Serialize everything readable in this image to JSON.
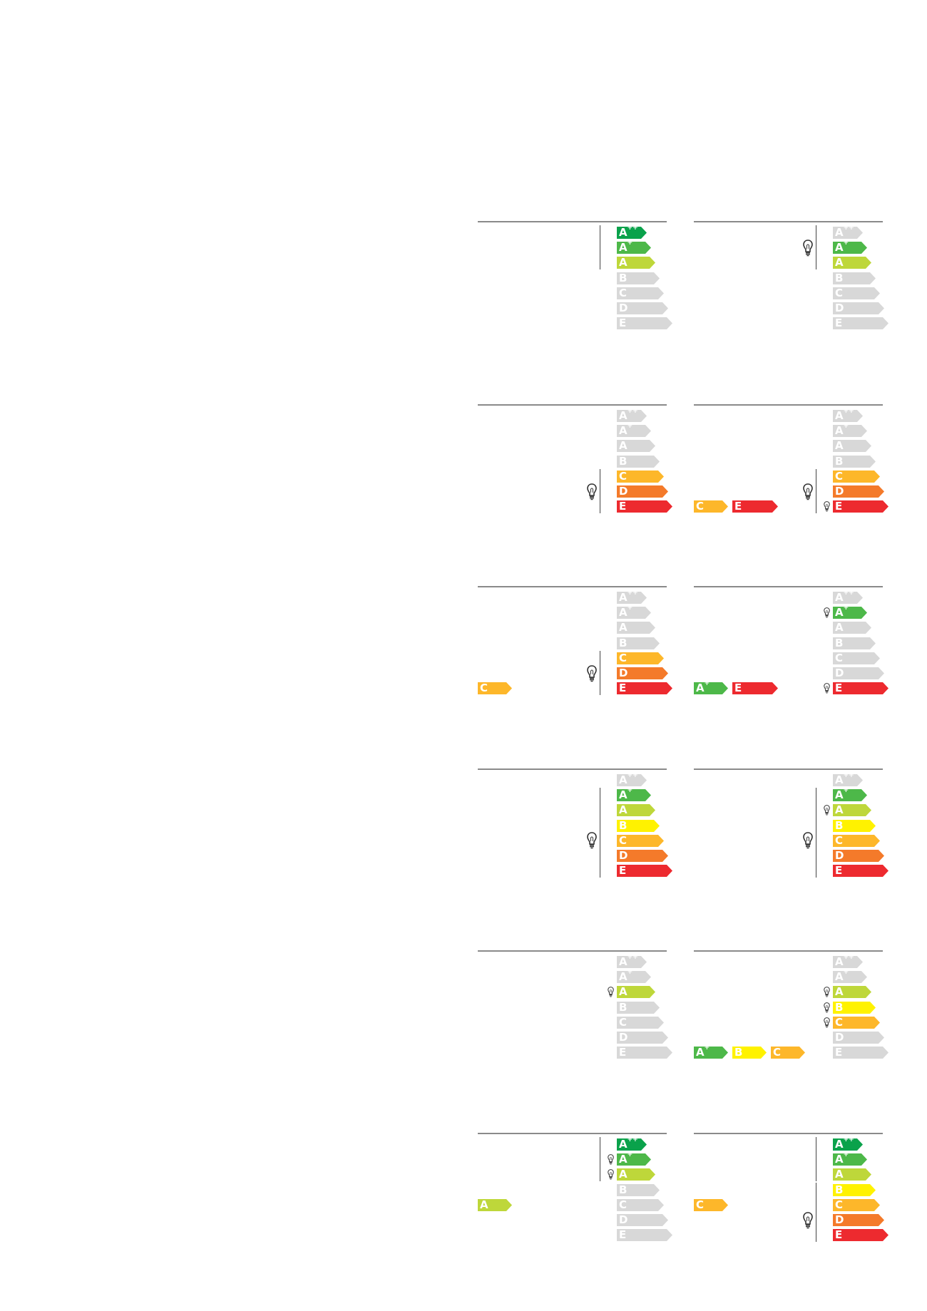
{
  "colors": {
    "A++": "#0aa24b",
    "A+": "#4db849",
    "A": "#bed73a",
    "B": "#fff200",
    "C": "#fdb72a",
    "D": "#f47a2a",
    "E": "#ed2a2f",
    "inactive": "#d8d8d8"
  },
  "panels": [
    {
      "active": [
        "A++",
        "A+",
        "A"
      ],
      "line": [
        "A++",
        "A"
      ],
      "bulbs": [],
      "inline": []
    },
    {
      "active": [
        "A+",
        "A"
      ],
      "line": [
        "A++",
        "A"
      ],
      "bulbs": [
        {
          "size": "large",
          "at": "A+"
        }
      ],
      "inline": []
    },
    {
      "active": [
        "C",
        "D",
        "E"
      ],
      "line": [
        "C",
        "E"
      ],
      "bulbs": [
        {
          "size": "large",
          "at": "D"
        }
      ],
      "inline": []
    },
    {
      "active": [
        "C",
        "D",
        "E"
      ],
      "line": [
        "C",
        "E"
      ],
      "bulbs": [
        {
          "size": "large",
          "at": "D"
        },
        {
          "size": "small",
          "at": "E"
        }
      ],
      "inline": [
        "C",
        "E"
      ]
    },
    {
      "active": [
        "C",
        "D",
        "E"
      ],
      "line": [
        "C",
        "E"
      ],
      "bulbs": [
        {
          "size": "large",
          "at": "D"
        }
      ],
      "inline": [
        "C"
      ]
    },
    {
      "active": [
        "A+",
        "E"
      ],
      "line": [],
      "bulbs": [
        {
          "size": "small",
          "at": "A+"
        },
        {
          "size": "small",
          "at": "E"
        }
      ],
      "inline": [
        "A+",
        "E"
      ]
    },
    {
      "active": [
        "A+",
        "A",
        "B",
        "C",
        "D",
        "E"
      ],
      "line": [
        "A+",
        "E"
      ],
      "bulbs": [
        {
          "size": "large",
          "at": "C"
        }
      ],
      "inline": []
    },
    {
      "active": [
        "A+",
        "A",
        "B",
        "C",
        "D",
        "E"
      ],
      "line": [
        "A+",
        "E"
      ],
      "bulbs": [
        {
          "size": "small",
          "at": "A"
        },
        {
          "size": "large",
          "at": "C"
        }
      ],
      "inline": []
    },
    {
      "active": [
        "A"
      ],
      "line": [],
      "bulbs": [
        {
          "size": "small",
          "at": "A"
        }
      ],
      "inline": []
    },
    {
      "active": [
        "A",
        "B",
        "C"
      ],
      "line": [],
      "bulbs": [
        {
          "size": "small",
          "at": "A"
        },
        {
          "size": "small",
          "at": "B"
        },
        {
          "size": "small",
          "at": "C"
        }
      ],
      "inline": [
        "A+",
        "B",
        "C"
      ]
    },
    {
      "active": [
        "A++",
        "A+",
        "A"
      ],
      "line": [
        "A++",
        "A"
      ],
      "bulbs": [
        {
          "size": "small",
          "at": "A+"
        },
        {
          "size": "small",
          "at": "A"
        }
      ],
      "inline": [
        "A"
      ]
    },
    {
      "active": [
        "A++",
        "A+",
        "A",
        "B",
        "C",
        "D",
        "E"
      ],
      "line": [
        "A++",
        "A"
      ],
      "line2": [
        "B",
        "E"
      ],
      "bulbs": [
        {
          "size": "large",
          "at": "D"
        }
      ],
      "inline": [
        "C"
      ]
    }
  ],
  "classes": [
    {
      "key": "A++",
      "letter": "A",
      "sup": "++"
    },
    {
      "key": "A+",
      "letter": "A",
      "sup": "+"
    },
    {
      "key": "A",
      "letter": "A",
      "sup": ""
    },
    {
      "key": "B",
      "letter": "B",
      "sup": ""
    },
    {
      "key": "C",
      "letter": "C",
      "sup": ""
    },
    {
      "key": "D",
      "letter": "D",
      "sup": ""
    },
    {
      "key": "E",
      "letter": "E",
      "sup": ""
    }
  ]
}
